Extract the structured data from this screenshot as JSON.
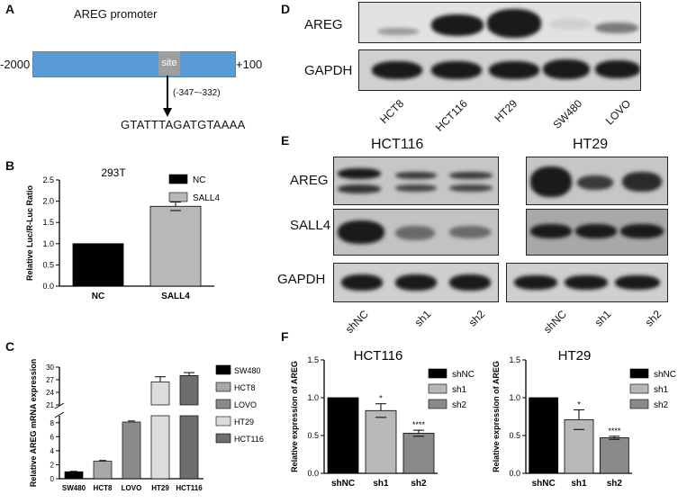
{
  "panels": {
    "A": "A",
    "B": "B",
    "C": "C",
    "D": "D",
    "E": "E",
    "F": "F"
  },
  "panelA": {
    "title": "AREG promoter",
    "left": "-2000",
    "right": "+100",
    "site": "site",
    "range": "(-347~-332)",
    "sequence": "GTATTTAGATGTAAAA"
  },
  "panelD": {
    "rows": [
      "AREG",
      "GAPDH"
    ],
    "lanes": [
      "HCT8",
      "HCT116",
      "HT29",
      "SW480",
      "LOVO"
    ]
  },
  "panelE": {
    "groups": [
      "HCT116",
      "HT29"
    ],
    "rows": [
      "AREG",
      "SALL4",
      "GAPDH"
    ],
    "lanes": [
      "shNC",
      "sh1",
      "sh2"
    ]
  },
  "colors": {
    "bar_black": "#000000",
    "bar_light": "#b8b8b8",
    "bar_mid": "#8a8a8a",
    "bar_dark": "#6e6e6e",
    "promoter": "#5b9bd5",
    "site": "#9e9e9e"
  },
  "chart_data": [
    {
      "id": "B",
      "type": "bar",
      "title": "293T",
      "categories": [
        "NC",
        "SALL4"
      ],
      "values": [
        1.0,
        1.88
      ],
      "errors": [
        0,
        0.1
      ],
      "significance": [
        "",
        "****"
      ],
      "ylabel": "Relative Luc/R-Luc Ratio",
      "ylim": [
        0,
        2.5
      ],
      "yticks": [
        "0.0",
        "0.5",
        "1.0",
        "1.5",
        "2.0",
        "2.5"
      ],
      "legend": [
        "NC",
        "SALL4"
      ],
      "colors": [
        "#000000",
        "#b8b8b8"
      ]
    },
    {
      "id": "C",
      "type": "bar",
      "axis_break": [
        9,
        21
      ],
      "categories": [
        "SW480",
        "HCT8",
        "LOVO",
        "HT29",
        "HCT116"
      ],
      "values": [
        1.0,
        2.5,
        8.1,
        26.5,
        28.0
      ],
      "errors": [
        0.05,
        0.1,
        0.15,
        1.2,
        0.7
      ],
      "ylabel": "Relative AREG mRNA expression",
      "yticks_low": [
        "0",
        "2",
        "4",
        "6",
        "8"
      ],
      "yticks_high": [
        "21",
        "24",
        "27",
        "30"
      ],
      "legend": [
        "SW480",
        "HCT8",
        "LOVO",
        "HT29",
        "HCT116"
      ],
      "colors": [
        "#000000",
        "#a8a8a8",
        "#8a8a8a",
        "#dcdcdc",
        "#6e6e6e"
      ]
    },
    {
      "id": "F1",
      "type": "bar",
      "title": "HCT116",
      "categories": [
        "shNC",
        "sh1",
        "sh2"
      ],
      "values": [
        1.0,
        0.83,
        0.53
      ],
      "errors": [
        0,
        0.09,
        0.04
      ],
      "significance": [
        "",
        "*",
        "****"
      ],
      "ylabel": "Relative expression of AREG",
      "ylim": [
        0,
        1.5
      ],
      "yticks": [
        "0.0",
        "0.5",
        "1.0",
        "1.5"
      ],
      "legend": [
        "shNC",
        "sh1",
        "sh2"
      ],
      "colors": [
        "#000000",
        "#b8b8b8",
        "#8a8a8a"
      ]
    },
    {
      "id": "F2",
      "type": "bar",
      "title": "HT29",
      "categories": [
        "shNC",
        "sh1",
        "sh2"
      ],
      "values": [
        1.0,
        0.71,
        0.47
      ],
      "errors": [
        0,
        0.13,
        0.02
      ],
      "significance": [
        "",
        "*",
        "****"
      ],
      "ylabel": "Relative expression of AREG",
      "ylim": [
        0,
        1.5
      ],
      "yticks": [
        "0.0",
        "0.5",
        "1.0",
        "1.5"
      ],
      "legend": [
        "shNC",
        "sh1",
        "sh2"
      ],
      "colors": [
        "#000000",
        "#b8b8b8",
        "#8a8a8a"
      ]
    }
  ]
}
